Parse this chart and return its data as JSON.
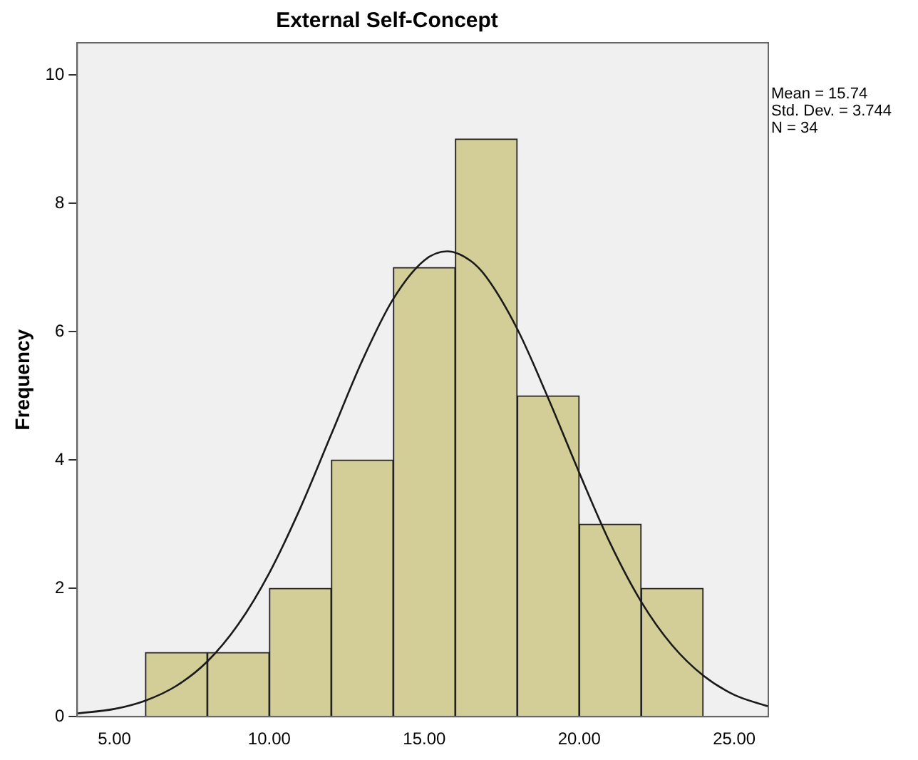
{
  "chart_data": {
    "type": "histogram",
    "title": "External Self-Concept",
    "ylabel": "Frequency",
    "bins": [
      6,
      8,
      10,
      12,
      14,
      16,
      18,
      20,
      22,
      24
    ],
    "values": [
      1,
      1,
      2,
      4,
      7,
      9,
      5,
      3,
      2
    ],
    "color": "#d3ce97",
    "series": [
      {
        "type": "line",
        "color": "#1a1a1a",
        "x": [
          3.8,
          5,
          6,
          7,
          8,
          9,
          10,
          11,
          12,
          13,
          14,
          15,
          15.74,
          16.5,
          17,
          18,
          19,
          20,
          21,
          22,
          23,
          24,
          25,
          26.1
        ],
        "values": [
          0.05,
          0.12,
          0.25,
          0.48,
          0.86,
          1.44,
          2.24,
          3.25,
          4.4,
          5.55,
          6.51,
          7.11,
          7.25,
          7.1,
          6.85,
          6.04,
          4.96,
          3.8,
          2.7,
          1.79,
          1.11,
          0.64,
          0.34,
          0.16
        ]
      }
    ],
    "xlim": [
      3.8,
      26.1
    ],
    "xticks": [
      {
        "value": 5,
        "label": "5.00"
      },
      {
        "value": 10,
        "label": "10.00"
      },
      {
        "value": 15,
        "label": "15.00"
      },
      {
        "value": 20,
        "label": "20.00"
      },
      {
        "value": 25,
        "label": "25.00"
      }
    ],
    "ylim": [
      0,
      10.5
    ],
    "yticks": [
      0,
      2,
      4,
      6,
      8,
      10
    ],
    "grid": false,
    "legend": false,
    "marker": "none",
    "annotations": [
      "Mean = 15.74",
      "Std. Dev. = 3.744",
      "N = 34"
    ]
  }
}
